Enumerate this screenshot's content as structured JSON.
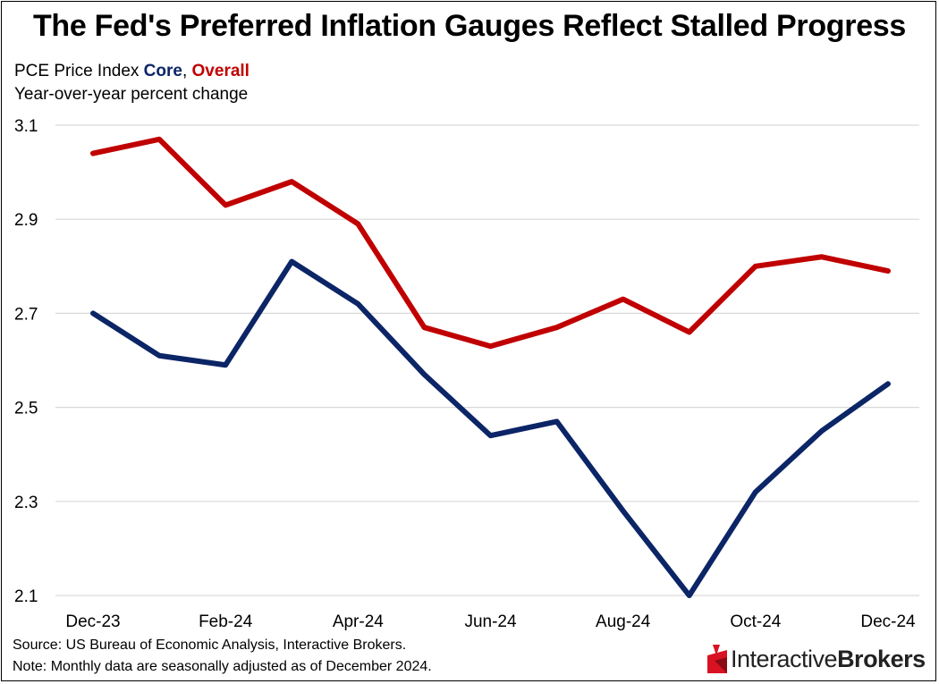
{
  "title": "The Fed's Preferred Inflation Gauges Reflect Stalled Progress",
  "subtitle": {
    "prefix": "PCE Price Index ",
    "core": "Core",
    "comma": ", ",
    "overall": "Overall",
    "units": "Year-over-year percent change"
  },
  "footer": {
    "source": "Source: US Bureau of Economic Analysis, Interactive Brokers.",
    "note": "Note: Monthly data are seasonally adjusted as of December 2024."
  },
  "logo": {
    "text_regular": "Interactive",
    "text_bold": "Brokers"
  },
  "colors": {
    "core": "#0b2566",
    "overall": "#c00000",
    "grid": "#d9d9d9"
  },
  "chart_data": {
    "type": "line",
    "x": [
      "Dec-23",
      "Jan-24",
      "Feb-24",
      "Mar-24",
      "Apr-24",
      "May-24",
      "Jun-24",
      "Jul-24",
      "Aug-24",
      "Sep-24",
      "Oct-24",
      "Nov-24",
      "Dec-24"
    ],
    "x_tick_labels": [
      "Dec-23",
      "Feb-24",
      "Apr-24",
      "Jun-24",
      "Aug-24",
      "Oct-24",
      "Dec-24"
    ],
    "y_ticks": [
      "3.1",
      "2.9",
      "2.7",
      "2.5",
      "2.3",
      "2.1"
    ],
    "ylim": [
      2.1,
      3.1
    ],
    "grid": true,
    "series": [
      {
        "name": "Overall",
        "values": [
          3.04,
          3.07,
          2.93,
          2.98,
          2.89,
          2.67,
          2.63,
          2.67,
          2.73,
          2.66,
          2.8,
          2.82,
          2.79
        ]
      },
      {
        "name": "Core",
        "values": [
          2.7,
          2.61,
          2.59,
          2.81,
          2.72,
          2.57,
          2.44,
          2.47,
          2.28,
          2.1,
          2.32,
          2.45,
          2.55
        ]
      }
    ]
  }
}
